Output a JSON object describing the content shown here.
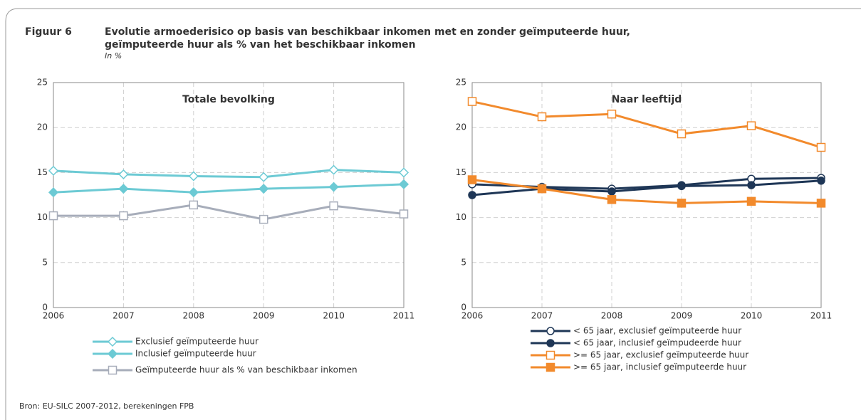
{
  "figure": {
    "label": "Figuur 6",
    "title": [
      "Evolutie armoederisico op basis van beschikbaar inkomen met en zonder geïmputeerde huur,",
      "geïmputeerde huur als % van het beschikbaar inkomen"
    ],
    "subtitle": "In %",
    "source": "Bron: EU-SILC 2007-2012, berekeningen FPB"
  },
  "chart_data": [
    {
      "type": "line",
      "title": "Totale bevolking",
      "x": [
        2006,
        2007,
        2008,
        2009,
        2010,
        2011
      ],
      "xlim": [
        2006,
        2011
      ],
      "xticks": [
        2006,
        2007,
        2008,
        2009,
        2010,
        2011
      ],
      "ylim": [
        0,
        25
      ],
      "yticks": [
        0,
        5,
        10,
        15,
        20,
        25
      ],
      "grid": true,
      "series": [
        {
          "name": "Exclusief geïmputeerde huur",
          "color": "#6ccad4",
          "marker": "diamond",
          "filled": false,
          "values": [
            15.2,
            14.8,
            14.6,
            14.5,
            15.3,
            15.0
          ]
        },
        {
          "name": "Inclusief geïmputeerde huur",
          "color": "#6ccad4",
          "marker": "diamond",
          "filled": true,
          "values": [
            12.8,
            13.2,
            12.8,
            13.2,
            13.4,
            13.7
          ]
        },
        {
          "name": "Geïmputeerde huur als % van beschikbaar inkomen",
          "color": "#a7adba",
          "marker": "square",
          "filled": false,
          "values": [
            10.2,
            10.2,
            11.4,
            9.8,
            11.3,
            10.4
          ]
        }
      ]
    },
    {
      "type": "line",
      "title": "Naar leeftijd",
      "x": [
        2006,
        2007,
        2008,
        2009,
        2010,
        2011
      ],
      "xlim": [
        2006,
        2011
      ],
      "xticks": [
        2006,
        2007,
        2008,
        2009,
        2010,
        2011
      ],
      "ylim": [
        0,
        25
      ],
      "yticks": [
        0,
        5,
        10,
        15,
        20,
        25
      ],
      "grid": true,
      "series": [
        {
          "name": "< 65 jaar, exclusief geïmputeerde huur",
          "color": "#1e3656",
          "marker": "circle",
          "filled": false,
          "values": [
            13.7,
            13.4,
            13.2,
            13.6,
            14.3,
            14.4
          ]
        },
        {
          "name": "< 65 jaar, inclusief geïmpudeerde huur",
          "color": "#1e3656",
          "marker": "circle",
          "filled": true,
          "values": [
            12.5,
            13.2,
            12.9,
            13.5,
            13.6,
            14.1
          ]
        },
        {
          "name": ">= 65 jaar, exclusief geïmputeerde huur",
          "color": "#f28a2c",
          "marker": "square",
          "filled": false,
          "values": [
            22.9,
            21.2,
            21.5,
            19.3,
            20.2,
            17.8
          ]
        },
        {
          "name": ">= 65 jaar, inclusief geïmputeerde huur",
          "color": "#f28a2c",
          "marker": "square",
          "filled": true,
          "values": [
            14.2,
            13.2,
            12.0,
            11.6,
            11.8,
            11.6
          ]
        }
      ]
    }
  ]
}
